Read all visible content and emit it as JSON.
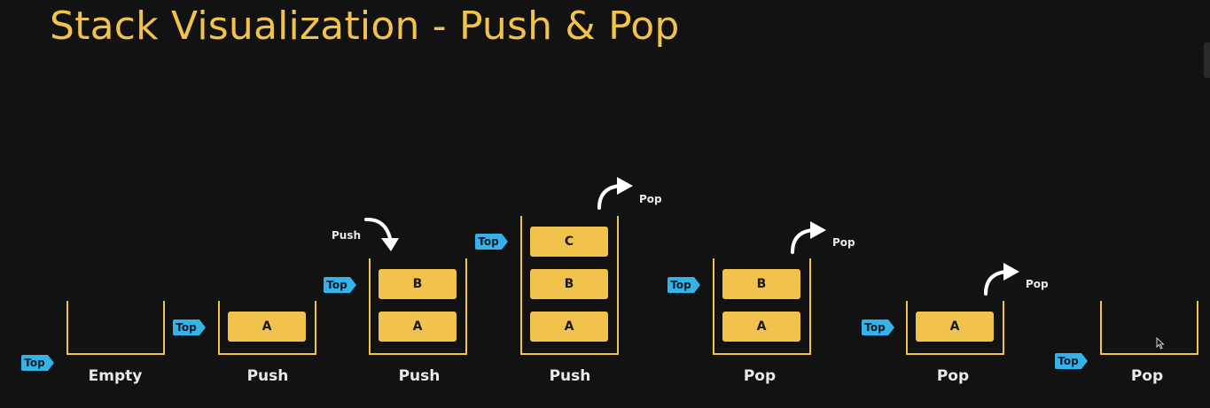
{
  "title": "Stack Visualization - Push & Pop",
  "top_tag": "Top",
  "colors": {
    "background": "#121212",
    "accent": "#f1c24c",
    "top_tag": "#35b3e8",
    "text": "#eaeaea"
  },
  "steps": [
    {
      "label": "Empty",
      "items": []
    },
    {
      "label": "Push",
      "items": [
        "A"
      ]
    },
    {
      "label": "Push",
      "items": [
        "A",
        "B"
      ],
      "arrow": "Push"
    },
    {
      "label": "Push",
      "items": [
        "A",
        "B",
        "C"
      ],
      "arrow": "Pop"
    },
    {
      "label": "Pop",
      "items": [
        "A",
        "B"
      ],
      "arrow": "Pop"
    },
    {
      "label": "Pop",
      "items": [
        "A"
      ],
      "arrow": "Pop"
    },
    {
      "label": "Pop",
      "items": []
    }
  ]
}
